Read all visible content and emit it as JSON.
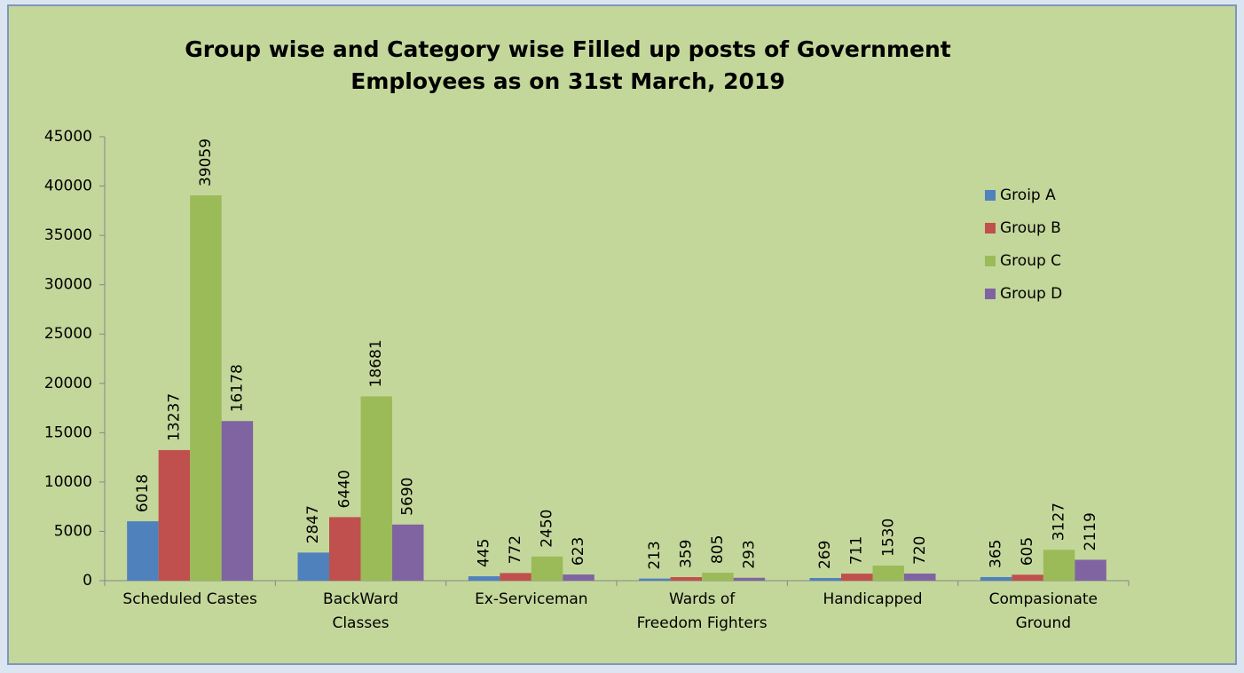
{
  "chart_data": {
    "type": "bar",
    "title": "Group wise and Category wise Filled up posts of Government\nEmployees as on 31st March, 2019",
    "categories": [
      "Scheduled Castes",
      "BackWard\nClasses",
      "Ex-Serviceman",
      "Wards of\nFreedom Fighters",
      "Handicapped",
      "Compasionate\nGround"
    ],
    "series": [
      {
        "name": "Groip A",
        "color": "#4f81bd",
        "values": [
          6018,
          2847,
          445,
          213,
          269,
          365
        ]
      },
      {
        "name": "Group B",
        "color": "#c0504d",
        "values": [
          13237,
          6440,
          772,
          359,
          711,
          605
        ]
      },
      {
        "name": "Group C",
        "color": "#9bbb59",
        "values": [
          39059,
          18681,
          2450,
          805,
          1530,
          3127
        ]
      },
      {
        "name": "Group D",
        "color": "#8064a2",
        "values": [
          16178,
          5690,
          623,
          293,
          720,
          2119
        ]
      }
    ],
    "ylim": [
      0,
      45000
    ],
    "yticks": [
      0,
      5000,
      10000,
      15000,
      20000,
      25000,
      30000,
      35000,
      40000,
      45000
    ],
    "legend": "right"
  }
}
